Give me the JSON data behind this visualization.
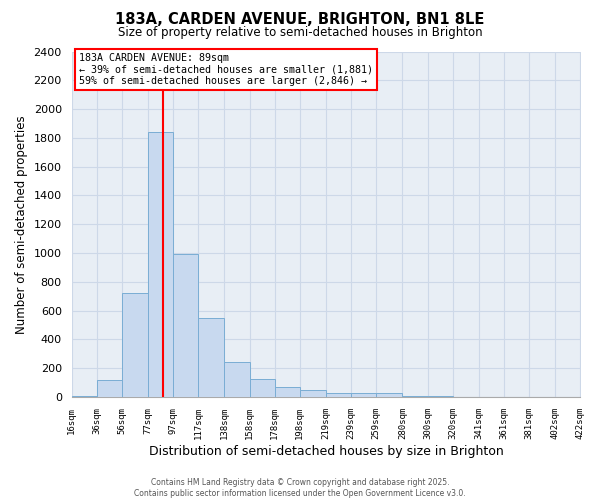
{
  "title": "183A, CARDEN AVENUE, BRIGHTON, BN1 8LE",
  "subtitle": "Size of property relative to semi-detached houses in Brighton",
  "xlabel": "Distribution of semi-detached houses by size in Brighton",
  "ylabel": "Number of semi-detached properties",
  "bar_edges": [
    16,
    36,
    56,
    77,
    97,
    117,
    138,
    158,
    178,
    198,
    219,
    239,
    259,
    280,
    300,
    320,
    341,
    361,
    381,
    402,
    422
  ],
  "bar_heights": [
    10,
    120,
    720,
    1840,
    990,
    550,
    245,
    125,
    70,
    50,
    30,
    25,
    30,
    10,
    5,
    2,
    1,
    0,
    0,
    0
  ],
  "bar_color": "#c8d9ef",
  "bar_edgecolor": "#7aadd4",
  "red_line_x": 89,
  "ylim": [
    0,
    2400
  ],
  "yticks": [
    0,
    200,
    400,
    600,
    800,
    1000,
    1200,
    1400,
    1600,
    1800,
    2000,
    2200,
    2400
  ],
  "annotation_title": "183A CARDEN AVENUE: 89sqm",
  "annotation_line1": "← 39% of semi-detached houses are smaller (1,881)",
  "annotation_line2": "59% of semi-detached houses are larger (2,846) →",
  "footer_line1": "Contains HM Land Registry data © Crown copyright and database right 2025.",
  "footer_line2": "Contains public sector information licensed under the Open Government Licence v3.0.",
  "background_color": "#ffffff",
  "grid_color": "#cdd8e8",
  "plot_bg_color": "#e8eef5"
}
